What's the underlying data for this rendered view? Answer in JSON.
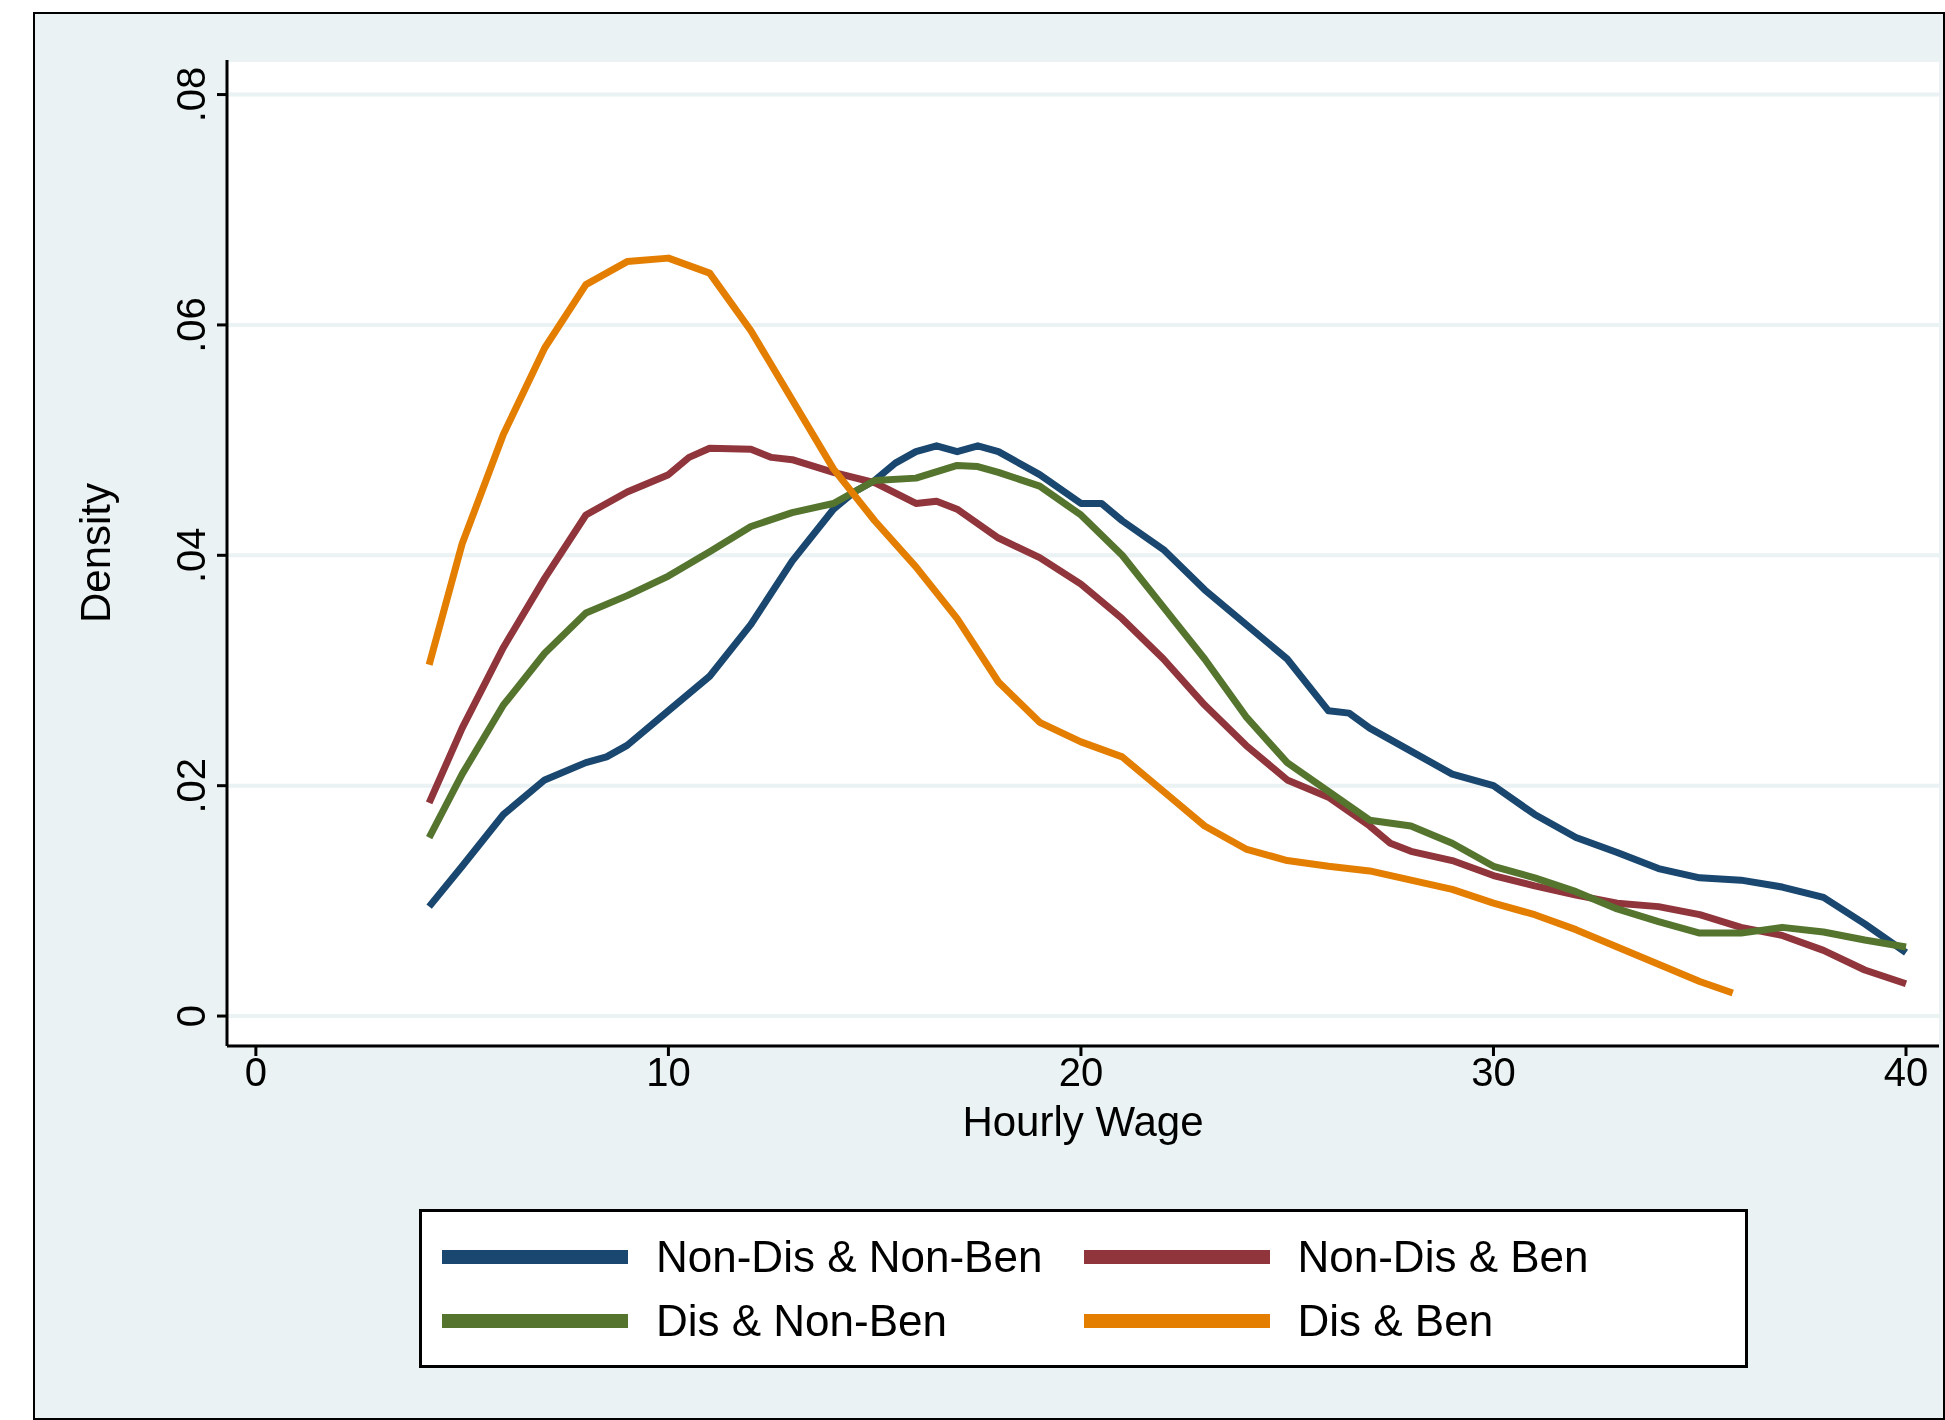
{
  "chart_data": {
    "type": "line",
    "xlabel": "Hourly Wage",
    "ylabel": "Density",
    "xlim": [
      -0.7,
      40.8
    ],
    "xticks": [
      0,
      10,
      20,
      30,
      40
    ],
    "ylim": [
      -0.0026,
      0.083
    ],
    "yticks": [
      {
        "value": 0,
        "label": "0"
      },
      {
        "value": 0.02,
        "label": ".02"
      },
      {
        "value": 0.04,
        "label": ".04"
      },
      {
        "value": 0.06,
        "label": ".06"
      },
      {
        "value": 0.08,
        "label": ".08"
      }
    ],
    "grid": "y",
    "legend": "bottom",
    "marker": "none",
    "line_style": "solid",
    "series": [
      {
        "name": "Non-Dis & Non-Ben",
        "color": "#1a476f",
        "x": [
          4.2,
          5,
          6,
          7,
          8,
          8.5,
          9,
          10,
          11,
          12,
          13,
          14,
          14.5,
          15,
          15.5,
          16,
          16.5,
          17,
          17.5,
          18,
          19,
          20,
          20.5,
          21,
          22,
          23,
          24,
          25,
          26,
          26.5,
          27,
          28,
          29,
          30,
          31,
          32,
          33,
          34,
          35,
          36,
          37,
          38,
          39,
          40
        ],
        "values": [
          0.0095,
          0.013,
          0.0175,
          0.0205,
          0.022,
          0.0225,
          0.0235,
          0.0265,
          0.0295,
          0.034,
          0.0395,
          0.044,
          0.0455,
          0.0465,
          0.048,
          0.049,
          0.0495,
          0.049,
          0.0495,
          0.049,
          0.047,
          0.0445,
          0.0445,
          0.043,
          0.0405,
          0.037,
          0.034,
          0.031,
          0.0265,
          0.0263,
          0.025,
          0.023,
          0.021,
          0.02,
          0.0175,
          0.0155,
          0.0142,
          0.0128,
          0.012,
          0.0118,
          0.0112,
          0.0103,
          0.008,
          0.0055
        ]
      },
      {
        "name": "Non-Dis & Ben",
        "color": "#90353b",
        "x": [
          4.2,
          5,
          6,
          7,
          8,
          9,
          10,
          10.5,
          11,
          12,
          12.5,
          13,
          14,
          15,
          16,
          16.5,
          17,
          18,
          19,
          20,
          21,
          22,
          23,
          24,
          25,
          26,
          27,
          27.5,
          28,
          29,
          30,
          31,
          32,
          33,
          34,
          35,
          36,
          37,
          38,
          39,
          40
        ],
        "values": [
          0.0185,
          0.025,
          0.032,
          0.038,
          0.0435,
          0.0455,
          0.047,
          0.0485,
          0.0493,
          0.0492,
          0.0485,
          0.0483,
          0.0472,
          0.0463,
          0.0445,
          0.0447,
          0.044,
          0.0415,
          0.0398,
          0.0375,
          0.0345,
          0.031,
          0.027,
          0.0235,
          0.0205,
          0.019,
          0.0165,
          0.015,
          0.0143,
          0.0135,
          0.0122,
          0.0113,
          0.0105,
          0.0098,
          0.0095,
          0.0088,
          0.0077,
          0.007,
          0.0057,
          0.004,
          0.0028
        ]
      },
      {
        "name": "Dis & Non-Ben",
        "color": "#55752f",
        "x": [
          4.2,
          5,
          6,
          7,
          8,
          9,
          10,
          11,
          12,
          13,
          14,
          15,
          16,
          17,
          17.5,
          18,
          19,
          20,
          21,
          22,
          23,
          24,
          25,
          26,
          27,
          28,
          29,
          30,
          31,
          32,
          33,
          34,
          35,
          36,
          37,
          38,
          39,
          40
        ],
        "values": [
          0.0155,
          0.021,
          0.027,
          0.0315,
          0.035,
          0.0365,
          0.0382,
          0.0403,
          0.0425,
          0.0437,
          0.0445,
          0.0465,
          0.0467,
          0.0478,
          0.0477,
          0.0472,
          0.046,
          0.0435,
          0.04,
          0.0355,
          0.031,
          0.026,
          0.022,
          0.0195,
          0.017,
          0.0165,
          0.015,
          0.013,
          0.012,
          0.0108,
          0.0093,
          0.0082,
          0.0072,
          0.0072,
          0.0077,
          0.0073,
          0.0066,
          0.006
        ]
      },
      {
        "name": "Dis & Ben",
        "color": "#e37e00",
        "x": [
          4.2,
          5,
          6,
          7,
          8,
          9,
          10,
          11,
          12,
          13,
          14,
          15,
          16,
          17,
          18,
          19,
          20,
          21,
          22,
          23,
          24,
          25,
          26,
          27,
          28,
          29,
          30,
          31,
          32,
          33,
          34,
          35,
          35.8
        ],
        "values": [
          0.0305,
          0.041,
          0.0505,
          0.058,
          0.0635,
          0.0655,
          0.0658,
          0.0645,
          0.0595,
          0.0535,
          0.0475,
          0.043,
          0.039,
          0.0345,
          0.029,
          0.0255,
          0.0238,
          0.0225,
          0.0195,
          0.0165,
          0.0145,
          0.0135,
          0.013,
          0.0126,
          0.0118,
          0.011,
          0.0098,
          0.0088,
          0.0075,
          0.006,
          0.0045,
          0.003,
          0.002
        ]
      }
    ]
  }
}
